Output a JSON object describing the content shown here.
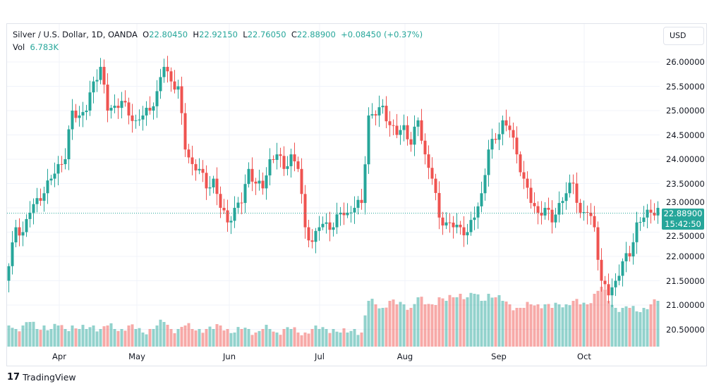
{
  "header": {
    "symbol": "Silver / U.S. Dollar, 1D, OANDA",
    "o_label": "O",
    "o": "22.80450",
    "h_label": "H",
    "h": "22.92150",
    "l_label": "L",
    "l": "22.76050",
    "c_label": "C",
    "c": "22.88900",
    "change": "+0.08450 (+0.37%)",
    "vol_label": "Vol",
    "vol": "6.783K"
  },
  "currency_button": "USD",
  "last_price": {
    "price": "22.88900",
    "countdown": "15:42:50"
  },
  "branding": {
    "logo_text": "TradingView"
  },
  "colors": {
    "up": "#26a69a",
    "down": "#ef5350"
  },
  "chart_data": {
    "type": "candlestick",
    "title": "Silver / U.S. Dollar, 1D, OANDA",
    "price_ticks": [
      "26.00000",
      "25.50000",
      "25.00000",
      "24.50000",
      "24.00000",
      "23.50000",
      "23.00000",
      "22.50000",
      "22.00000",
      "21.50000",
      "21.00000",
      "20.50000"
    ],
    "ylim": [
      20.3,
      26.7
    ],
    "month_labels": [
      "Apr",
      "May",
      "Jun",
      "Jul",
      "Aug",
      "Sep",
      "Oct"
    ],
    "closes": [
      21.8,
      22.6,
      22.5,
      22.9,
      23.2,
      23.3,
      23.6,
      23.9,
      24.0,
      25.0,
      24.9,
      25.0,
      25.6,
      25.9,
      25.0,
      25.1,
      25.2,
      24.9,
      24.8,
      24.9,
      25.0,
      25.4,
      25.9,
      25.6,
      25.5,
      24.2,
      23.9,
      23.8,
      23.4,
      23.6,
      23.0,
      22.7,
      23.0,
      23.1,
      23.8,
      23.5,
      23.4,
      24.0,
      24.1,
      23.8,
      24.1,
      23.8,
      22.6,
      22.3,
      22.6,
      22.7,
      22.6,
      22.9,
      22.9,
      23.0,
      23.1,
      24.9,
      24.9,
      25.1,
      24.7,
      24.5,
      24.7,
      24.3,
      24.8,
      24.1,
      23.6,
      22.8,
      22.7,
      22.6,
      22.6,
      22.5,
      22.8,
      23.3,
      24.2,
      24.4,
      24.8,
      24.6,
      24.1,
      23.6,
      23.1,
      22.9,
      23.0,
      22.7,
      23.1,
      23.3,
      23.5,
      22.9,
      22.9,
      22.6,
      21.5,
      21.2,
      21.5,
      21.9,
      22.0,
      22.7,
      22.8,
      22.9,
      23.0,
      22.9,
      22.889
    ],
    "volumes_k": [
      6,
      5,
      6,
      7,
      5,
      6,
      5,
      6,
      5,
      6,
      5,
      5,
      6,
      5,
      6,
      5,
      5,
      6,
      5,
      4,
      5,
      6,
      7,
      5,
      5,
      6,
      5,
      5,
      5,
      5,
      6,
      5,
      4,
      5,
      5,
      4,
      5,
      5,
      4,
      5,
      5,
      4,
      4,
      5,
      5,
      5,
      5,
      4,
      4,
      5,
      4,
      13,
      12,
      11,
      13,
      12,
      12,
      11,
      14,
      12,
      12,
      14,
      13,
      14,
      15,
      14,
      15,
      13,
      15,
      14,
      13,
      12,
      11,
      11,
      12,
      12,
      12,
      11,
      12,
      12,
      13,
      12,
      12,
      15,
      17,
      13,
      11,
      11,
      11,
      10,
      11,
      12,
      13,
      12,
      6.783
    ]
  }
}
